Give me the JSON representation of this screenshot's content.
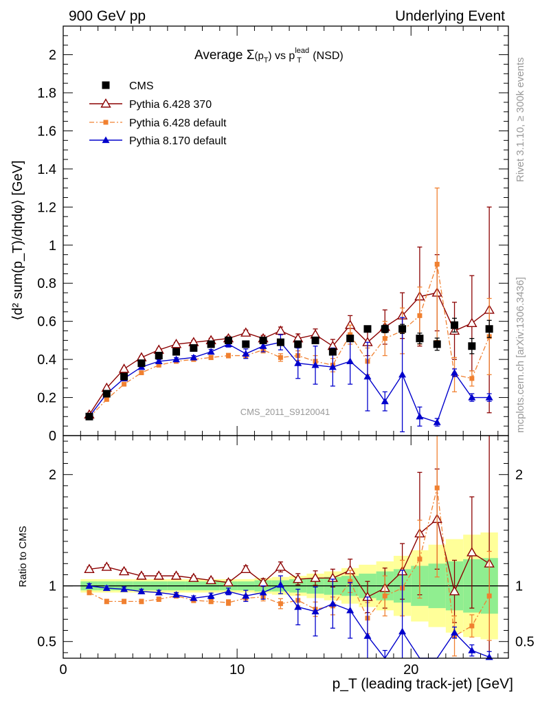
{
  "header": {
    "left": "900 GeV pp",
    "right": "Underlying Event",
    "title_prefix": "Average ",
    "title_sigma": "Σ",
    "title_arg": "(p",
    "title_arg_sub": "T",
    "title_arg_close": ")",
    "title_vs": " vs p",
    "title_lead_sup": "lead",
    "title_lead_sub": "T",
    "title_suffix": " (NSD)"
  },
  "side_text": {
    "rivet": "Rivet 3.1.10, ≥ 300k events",
    "mcplots": "mcplots.cern.ch [arXiv:1306.3436]"
  },
  "watermark": "CMS_2011_S9120041",
  "axes": {
    "ylabel_main": "⟨d² sum(p_T)/dηdφ⟩ [GeV]",
    "ylabel_ratio": "Ratio to CMS",
    "xlabel": "p_T (leading track-jet) [GeV]"
  },
  "colors": {
    "cms": "#000000",
    "p6_370": "#8b0000",
    "p6_default": "#f08030",
    "p8": "#0000cc",
    "band_inner": "#90ee90",
    "band_outer": "#ffff99"
  },
  "chart_data": {
    "type": "scatter",
    "xlim": [
      0,
      25.6
    ],
    "ylim_main": [
      0,
      2.15
    ],
    "ylim_ratio": [
      0.35,
      2.35
    ],
    "x_ticks": [
      0,
      10,
      20
    ],
    "y_ticks_main": [
      0,
      0.2,
      0.4,
      0.6,
      0.8,
      1,
      1.2,
      1.4,
      1.6,
      1.8,
      2
    ],
    "y_ticks_ratio": [
      0.5,
      1,
      2
    ],
    "x": [
      1.5,
      2.5,
      3.5,
      4.5,
      5.5,
      6.5,
      7.5,
      8.5,
      9.5,
      10.5,
      11.5,
      12.5,
      13.5,
      14.5,
      15.5,
      16.5,
      17.5,
      18.5,
      19.5,
      20.5,
      21.5,
      22.5,
      23.5,
      24.5
    ],
    "band_inner": [
      0.04,
      0.04,
      0.04,
      0.04,
      0.04,
      0.04,
      0.04,
      0.04,
      0.04,
      0.04,
      0.05,
      0.05,
      0.06,
      0.07,
      0.08,
      0.09,
      0.11,
      0.13,
      0.15,
      0.18,
      0.2,
      0.22,
      0.24,
      0.25
    ],
    "band_outer": [
      0.06,
      0.06,
      0.06,
      0.06,
      0.06,
      0.06,
      0.06,
      0.06,
      0.06,
      0.06,
      0.07,
      0.08,
      0.09,
      0.11,
      0.13,
      0.16,
      0.19,
      0.22,
      0.27,
      0.32,
      0.37,
      0.42,
      0.46,
      0.48
    ],
    "series": [
      {
        "name": "CMS",
        "key": "cms",
        "marker": "square",
        "values": [
          0.1,
          0.22,
          0.31,
          0.38,
          0.42,
          0.44,
          0.46,
          0.48,
          0.5,
          0.48,
          0.5,
          0.49,
          0.48,
          0.5,
          0.44,
          0.51,
          0.56,
          0.56,
          0.56,
          0.51,
          0.48,
          0.58,
          0.47,
          0.56
        ],
        "errors": [
          0.005,
          0.005,
          0.005,
          0.005,
          0.005,
          0.005,
          0.005,
          0.005,
          0.005,
          0.005,
          0.006,
          0.007,
          0.008,
          0.01,
          0.012,
          0.014,
          0.016,
          0.02,
          0.024,
          0.028,
          0.032,
          0.036,
          0.04,
          0.045
        ],
        "ratio": [
          1,
          1,
          1,
          1,
          1,
          1,
          1,
          1,
          1,
          1,
          1,
          1,
          1,
          1,
          1,
          1,
          1,
          1,
          1,
          1,
          1,
          1,
          1,
          1
        ]
      },
      {
        "name": "Pythia 6.428 370",
        "key": "p6_370",
        "marker": "triangle-open",
        "values": [
          0.11,
          0.25,
          0.35,
          0.41,
          0.45,
          0.48,
          0.49,
          0.5,
          0.51,
          0.54,
          0.51,
          0.55,
          0.51,
          0.53,
          0.47,
          0.58,
          0.49,
          0.57,
          0.63,
          0.73,
          0.75,
          0.55,
          0.59,
          0.66
        ],
        "errors": [
          0.005,
          0.005,
          0.006,
          0.007,
          0.008,
          0.009,
          0.01,
          0.011,
          0.012,
          0.014,
          0.016,
          0.02,
          0.024,
          0.03,
          0.035,
          0.05,
          0.07,
          0.09,
          0.12,
          0.26,
          0.2,
          0.15,
          0.25,
          0.54
        ],
        "ratio": [
          1.15,
          1.17,
          1.13,
          1.09,
          1.09,
          1.09,
          1.07,
          1.05,
          1.03,
          1.15,
          1.03,
          1.17,
          1.06,
          1.07,
          1.07,
          1.14,
          0.9,
          0.98,
          1.13,
          1.47,
          1.6,
          0.95,
          1.3,
          1.2
        ],
        "ratio_errors": [
          0.02,
          0.02,
          0.02,
          0.02,
          0.02,
          0.02,
          0.02,
          0.02,
          0.025,
          0.03,
          0.035,
          0.045,
          0.05,
          0.065,
          0.08,
          0.1,
          0.14,
          0.18,
          0.25,
          0.55,
          0.45,
          0.28,
          0.5,
          1.2
        ]
      },
      {
        "name": "Pythia 6.428 default",
        "key": "p6_default",
        "marker": "square-small",
        "values": [
          0.095,
          0.19,
          0.27,
          0.33,
          0.37,
          0.39,
          0.4,
          0.41,
          0.42,
          0.42,
          0.45,
          0.41,
          0.42,
          0.39,
          0.37,
          0.53,
          0.39,
          0.51,
          0.55,
          0.63,
          0.9,
          0.32,
          0.3,
          0.52
        ],
        "errors": [
          0.005,
          0.005,
          0.006,
          0.007,
          0.008,
          0.009,
          0.01,
          0.011,
          0.012,
          0.014,
          0.016,
          0.02,
          0.025,
          0.03,
          0.035,
          0.05,
          0.07,
          0.09,
          0.12,
          0.15,
          0.4,
          0.09,
          0.04,
          0.2
        ],
        "ratio": [
          0.94,
          0.86,
          0.86,
          0.86,
          0.88,
          0.91,
          0.87,
          0.86,
          0.85,
          0.89,
          0.9,
          0.84,
          0.87,
          0.79,
          0.82,
          1.04,
          0.71,
          0.91,
          0.98,
          1.24,
          1.88,
          0.55,
          0.64,
          0.91
        ],
        "ratio_errors": [
          0.02,
          0.02,
          0.02,
          0.02,
          0.02,
          0.02,
          0.02,
          0.02,
          0.025,
          0.03,
          0.035,
          0.045,
          0.05,
          0.065,
          0.08,
          0.1,
          0.14,
          0.18,
          0.25,
          0.35,
          0.8,
          0.18,
          0.1,
          0.4
        ]
      },
      {
        "name": "Pythia 8.170 default",
        "key": "p8",
        "marker": "triangle-filled",
        "values": [
          0.1,
          0.22,
          0.3,
          0.36,
          0.39,
          0.4,
          0.41,
          0.44,
          0.48,
          0.43,
          0.47,
          0.49,
          0.38,
          0.37,
          0.36,
          0.39,
          0.31,
          0.18,
          0.32,
          0.1,
          0.07,
          0.33,
          0.2,
          0.2
        ],
        "errors": [
          0.005,
          0.005,
          0.006,
          0.007,
          0.008,
          0.009,
          0.01,
          0.012,
          0.015,
          0.025,
          0.03,
          0.04,
          0.08,
          0.1,
          0.1,
          0.12,
          0.18,
          0.05,
          0.3,
          0.05,
          0.02,
          0.02,
          0.02,
          0.02
        ],
        "ratio": [
          1,
          0.98,
          0.97,
          0.95,
          0.94,
          0.92,
          0.89,
          0.91,
          0.95,
          0.91,
          0.94,
          1.01,
          0.81,
          0.77,
          0.84,
          0.78,
          0.55,
          0.32,
          0.59,
          0.2,
          0.15,
          0.58,
          0.42,
          0.36
        ],
        "ratio_errors": [
          0.02,
          0.02,
          0.02,
          0.02,
          0.02,
          0.02,
          0.02,
          0.025,
          0.03,
          0.05,
          0.06,
          0.08,
          0.16,
          0.22,
          0.22,
          0.25,
          0.35,
          0.1,
          0.55,
          0.1,
          0.05,
          0.05,
          0.05,
          0.05
        ]
      }
    ]
  }
}
